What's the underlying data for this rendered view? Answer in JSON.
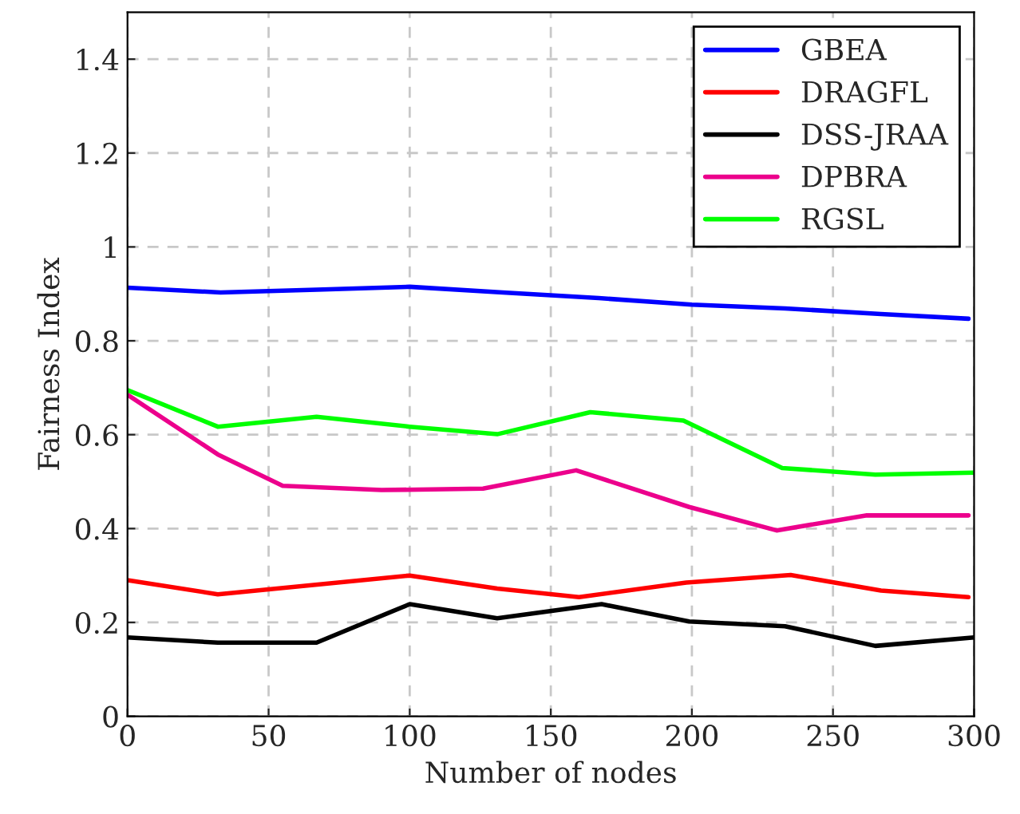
{
  "chart_data": {
    "type": "line",
    "xlabel": "Number of nodes",
    "ylabel": "Fairness Index",
    "xlim": [
      0,
      300
    ],
    "ylim": [
      0,
      1.5
    ],
    "xticks": [
      0,
      50,
      100,
      150,
      200,
      250,
      300
    ],
    "yticks": [
      0,
      0.2,
      0.4,
      0.6,
      0.8,
      1,
      1.2,
      1.4
    ],
    "grid": true,
    "legend": "top right",
    "marker": "none",
    "line_style": "solid",
    "series": [
      {
        "name": "GBEA",
        "color": "#0000ff",
        "x": [
          0,
          33,
          67,
          100,
          133,
          167,
          200,
          233,
          267,
          298
        ],
        "values": [
          0.913,
          0.903,
          0.909,
          0.915,
          0.903,
          0.891,
          0.877,
          0.869,
          0.857,
          0.847
        ]
      },
      {
        "name": "DRAGFL",
        "color": "#ff0000",
        "x": [
          0,
          32,
          100,
          131,
          160,
          198,
          235,
          267,
          298
        ],
        "values": [
          0.29,
          0.26,
          0.3,
          0.272,
          0.254,
          0.285,
          0.301,
          0.268,
          0.254
        ]
      },
      {
        "name": "DSS-JRAA",
        "color": "#000000",
        "x": [
          0,
          32,
          67,
          100,
          131,
          168,
          199,
          233,
          265,
          300
        ],
        "values": [
          0.168,
          0.157,
          0.157,
          0.239,
          0.209,
          0.239,
          0.202,
          0.192,
          0.15,
          0.168
        ]
      },
      {
        "name": "DPBRA",
        "color": "#ec008c",
        "x": [
          0,
          32,
          55,
          90,
          126,
          159,
          199,
          230,
          262,
          298
        ],
        "values": [
          0.685,
          0.558,
          0.491,
          0.482,
          0.485,
          0.524,
          0.446,
          0.396,
          0.428,
          0.428
        ]
      },
      {
        "name": "RGSL",
        "color": "#00ff00",
        "x": [
          0,
          32,
          67,
          100,
          131,
          164,
          197,
          232,
          265,
          300
        ],
        "values": [
          0.695,
          0.617,
          0.638,
          0.617,
          0.601,
          0.648,
          0.63,
          0.529,
          0.515,
          0.519
        ]
      }
    ]
  }
}
